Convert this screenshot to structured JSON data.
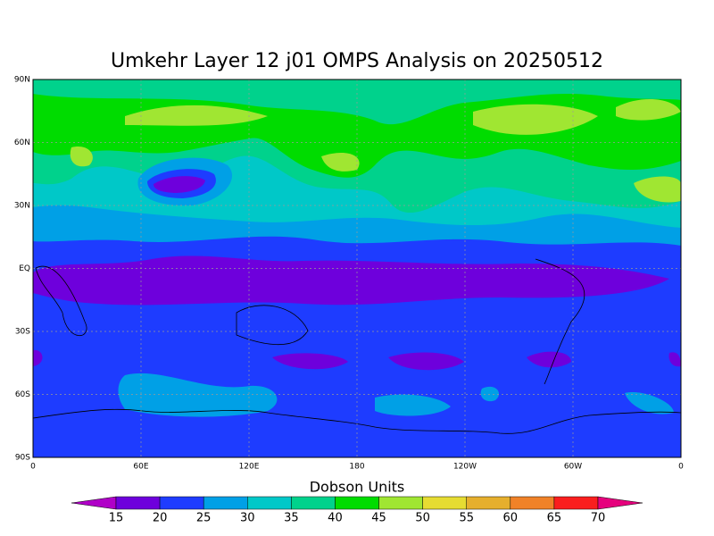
{
  "title": "Umkehr Layer 12 j01 OMPS Analysis on 20250512",
  "x_axis": {
    "ticks": [
      "0",
      "60E",
      "120E",
      "180",
      "120W",
      "60W",
      "0"
    ]
  },
  "y_axis": {
    "ticks": [
      "90N",
      "60N",
      "30N",
      "EQ",
      "30S",
      "60S",
      "90S"
    ]
  },
  "colorbar": {
    "title": "Dobson Units",
    "levels": [
      15,
      20,
      25,
      30,
      35,
      40,
      45,
      50,
      55,
      60,
      65,
      70
    ],
    "colors": [
      "#b000c8",
      "#6e00dc",
      "#1e3cff",
      "#00a0e6",
      "#00c8c8",
      "#00d28c",
      "#00dc00",
      "#a0e632",
      "#e6dc32",
      "#e6af2d",
      "#f08228",
      "#fa1e1e",
      "#e6007d"
    ]
  }
}
